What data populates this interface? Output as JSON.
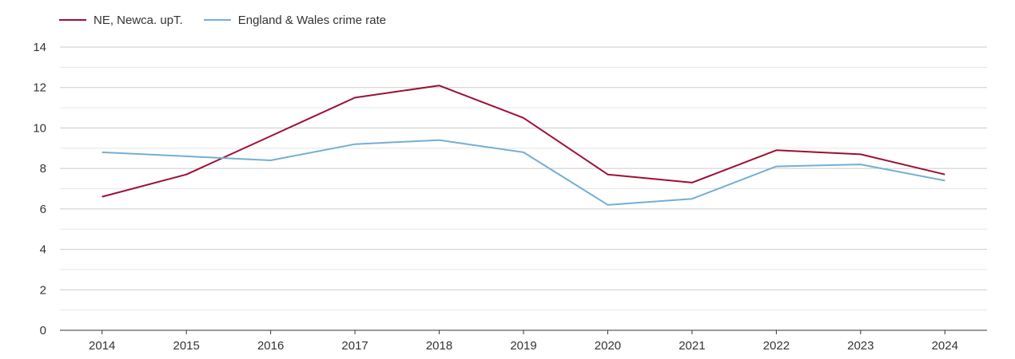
{
  "chart_data": {
    "type": "line",
    "title": "",
    "xlabel": "",
    "ylabel": "",
    "x": [
      "2014",
      "2015",
      "2016",
      "2017",
      "2018",
      "2019",
      "2020",
      "2021",
      "2022",
      "2023",
      "2024"
    ],
    "ylim": [
      0,
      14
    ],
    "yticks": [
      0,
      2,
      4,
      6,
      8,
      10,
      12,
      14
    ],
    "grid": true,
    "legend_position": "top-left",
    "series": [
      {
        "name": "NE, Newca. upT.",
        "color": "#9b0f35",
        "values": [
          6.6,
          7.7,
          9.6,
          11.5,
          12.1,
          10.5,
          7.7,
          7.3,
          8.9,
          8.7,
          7.7
        ]
      },
      {
        "name": "England & Wales crime rate",
        "color": "#74aed4",
        "values": [
          8.8,
          8.6,
          8.4,
          9.2,
          9.4,
          8.8,
          6.2,
          6.5,
          8.1,
          8.2,
          7.4
        ]
      }
    ]
  }
}
